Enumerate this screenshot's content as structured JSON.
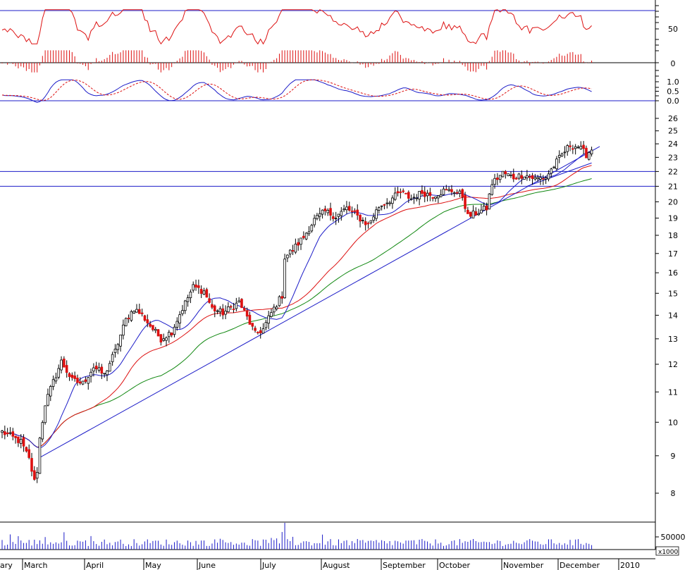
{
  "chart_data": {
    "type": "candlestick",
    "x_labels": [
      "ary",
      "March",
      "April",
      "May",
      "June",
      "July",
      "August",
      "September",
      "October",
      "November",
      "December",
      "2010"
    ],
    "y_ticks_price": [
      8,
      9,
      10,
      11,
      12,
      13,
      14,
      15,
      16,
      17,
      18,
      19,
      20,
      21,
      22,
      23,
      24,
      25,
      26
    ],
    "y_ticks_rsi": [
      50
    ],
    "y_ticks_hist": [
      0
    ],
    "y_ticks_oscillator": [
      "1.0",
      "0.5",
      "0.0"
    ],
    "y_ticks_volume": [
      "50000"
    ],
    "volume_multiplier": "x1000",
    "horizontal_levels": [
      22,
      21
    ],
    "price_range": [
      8,
      26
    ],
    "anchors": [
      {
        "d": 0,
        "p": 9.7
      },
      {
        "d": 7,
        "p": 9.4
      },
      {
        "d": 10,
        "p": 8.9
      },
      {
        "d": 12,
        "p": 8.3
      },
      {
        "d": 13,
        "p": 8.6
      },
      {
        "d": 14,
        "p": 9.5
      },
      {
        "d": 16,
        "p": 10.6
      },
      {
        "d": 20,
        "p": 11.6
      },
      {
        "d": 22,
        "p": 12.1
      },
      {
        "d": 26,
        "p": 11.4
      },
      {
        "d": 30,
        "p": 11.3
      },
      {
        "d": 34,
        "p": 11.9
      },
      {
        "d": 38,
        "p": 11.6
      },
      {
        "d": 42,
        "p": 12.5
      },
      {
        "d": 46,
        "p": 13.8
      },
      {
        "d": 49,
        "p": 14.3
      },
      {
        "d": 52,
        "p": 14.0
      },
      {
        "d": 56,
        "p": 13.4
      },
      {
        "d": 59,
        "p": 13.0
      },
      {
        "d": 63,
        "p": 13.3
      },
      {
        "d": 67,
        "p": 14.3
      },
      {
        "d": 71,
        "p": 15.3
      },
      {
        "d": 75,
        "p": 15.1
      },
      {
        "d": 78,
        "p": 14.3
      },
      {
        "d": 82,
        "p": 14.1
      },
      {
        "d": 86,
        "p": 14.4
      },
      {
        "d": 88,
        "p": 14.6
      },
      {
        "d": 91,
        "p": 13.9
      },
      {
        "d": 94,
        "p": 13.2
      },
      {
        "d": 97,
        "p": 13.4
      },
      {
        "d": 100,
        "p": 14.1
      },
      {
        "d": 103,
        "p": 14.7
      },
      {
        "d": 104,
        "p": 14.9
      },
      {
        "d": 105,
        "p": 16.8
      },
      {
        "d": 108,
        "p": 17.2
      },
      {
        "d": 112,
        "p": 17.9
      },
      {
        "d": 116,
        "p": 18.9
      },
      {
        "d": 120,
        "p": 19.4
      },
      {
        "d": 124,
        "p": 19.1
      },
      {
        "d": 128,
        "p": 19.6
      },
      {
        "d": 132,
        "p": 19.1
      },
      {
        "d": 136,
        "p": 18.6
      },
      {
        "d": 140,
        "p": 19.7
      },
      {
        "d": 144,
        "p": 20.1
      },
      {
        "d": 148,
        "p": 20.6
      },
      {
        "d": 152,
        "p": 20.2
      },
      {
        "d": 156,
        "p": 20.6
      },
      {
        "d": 160,
        "p": 20.4
      },
      {
        "d": 164,
        "p": 20.7
      },
      {
        "d": 168,
        "p": 20.7
      },
      {
        "d": 171,
        "p": 20.4
      },
      {
        "d": 173,
        "p": 19.1
      },
      {
        "d": 176,
        "p": 19.3
      },
      {
        "d": 180,
        "p": 19.6
      },
      {
        "d": 182,
        "p": 21.2
      },
      {
        "d": 186,
        "p": 21.9
      },
      {
        "d": 190,
        "p": 21.6
      },
      {
        "d": 194,
        "p": 21.8
      },
      {
        "d": 198,
        "p": 21.5
      },
      {
        "d": 202,
        "p": 21.6
      },
      {
        "d": 205,
        "p": 22.4
      },
      {
        "d": 208,
        "p": 23.2
      },
      {
        "d": 211,
        "p": 23.9
      },
      {
        "d": 214,
        "p": 23.8
      },
      {
        "d": 217,
        "p": 23.2
      },
      {
        "d": 219,
        "p": 23.6
      }
    ],
    "volume_spike": {
      "d": 105,
      "v": 80000
    }
  }
}
